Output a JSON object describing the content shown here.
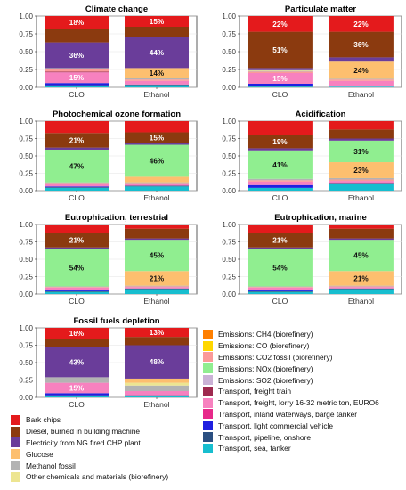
{
  "colors": {
    "bark_chips": "#e41a1c",
    "diesel": "#8b3a0f",
    "electricity": "#6a3d9a",
    "glucose": "#fdbf6f",
    "methanol_fossil": "#b3b3b3",
    "other_chemicals": "#ede591",
    "ch4": "#ff7f00",
    "co": "#ffd700",
    "co2_fossil": "#fb9a99",
    "nox": "#90ee90",
    "so2": "#cab2d6",
    "freight_train": "#9e2a4f",
    "lorry": "#f781bf",
    "barge": "#e7298a",
    "lcv": "#1f1fe0",
    "pipeline": "#2b4f81",
    "sea_tanker": "#17becf"
  },
  "legend": {
    "left": [
      {
        "key": "bark_chips",
        "label": "Bark chips"
      },
      {
        "key": "diesel",
        "label": "Diesel, burned in building machine"
      },
      {
        "key": "electricity",
        "label": "Electricity from NG fired CHP plant"
      },
      {
        "key": "glucose",
        "label": "Glucose"
      },
      {
        "key": "methanol_fossil",
        "label": "Methanol fossil"
      },
      {
        "key": "other_chemicals",
        "label": "Other chemicals and materials (biorefinery)"
      }
    ],
    "right": [
      {
        "key": "ch4",
        "label": "Emissions: CH4 (biorefinery)"
      },
      {
        "key": "co",
        "label": "Emissions: CO (biorefinery)"
      },
      {
        "key": "co2_fossil",
        "label": "Emissions: CO2 fossil (biorefinery)"
      },
      {
        "key": "nox",
        "label": "Emissions: NOx (biorefinery)"
      },
      {
        "key": "so2",
        "label": "Emissions: SO2 (biorefinery)"
      },
      {
        "key": "freight_train",
        "label": "Transport, freight train"
      },
      {
        "key": "lorry",
        "label": "Transport, freight, lorry 16-32 metric ton, EURO6"
      },
      {
        "key": "barge",
        "label": "Transport, inland waterways, barge tanker"
      },
      {
        "key": "lcv",
        "label": "Transport, light commercial vehicle"
      },
      {
        "key": "pipeline",
        "label": "Transport, pipeline, onshore"
      },
      {
        "key": "sea_tanker",
        "label": "Transport, sea, tanker"
      }
    ]
  },
  "chart_data": [
    {
      "type": "bar",
      "stacked": true,
      "title": "Climate change",
      "categories": [
        "CLO",
        "Ethanol"
      ],
      "yticks": [
        "0.00",
        "0.25",
        "0.50",
        "0.75",
        "1.00"
      ],
      "ylim": [
        0,
        1
      ],
      "series": [
        {
          "key": "sea_tanker",
          "values": [
            0.02,
            0.03
          ]
        },
        {
          "key": "pipeline",
          "values": [
            0.01,
            0.01
          ]
        },
        {
          "key": "lcv",
          "values": [
            0.03,
            0.0
          ]
        },
        {
          "key": "barge",
          "values": [
            0.0,
            0.0
          ]
        },
        {
          "key": "lorry",
          "values": [
            0.15,
            0.05
          ]
        },
        {
          "key": "freight_train",
          "values": [
            0.01,
            0.0
          ]
        },
        {
          "key": "co2_fossil",
          "values": [
            0.03,
            0.02
          ]
        },
        {
          "key": "methanol_fossil",
          "values": [
            0.02,
            0.02
          ]
        },
        {
          "key": "glucose",
          "values": [
            0.0,
            0.14
          ]
        },
        {
          "key": "electricity",
          "values": [
            0.36,
            0.44
          ]
        },
        {
          "key": "diesel",
          "values": [
            0.19,
            0.14
          ]
        },
        {
          "key": "bark_chips",
          "values": [
            0.18,
            0.15
          ]
        }
      ],
      "labels": [
        [
          "15%",
          "36%",
          "18%"
        ],
        [
          "14%",
          "44%",
          "15%"
        ]
      ],
      "label_keys": [
        [
          "lorry",
          "electricity",
          "bark_chips"
        ],
        [
          "glucose",
          "electricity",
          "bark_chips"
        ]
      ]
    },
    {
      "type": "bar",
      "stacked": true,
      "title": "Particulate matter",
      "categories": [
        "CLO",
        "Ethanol"
      ],
      "yticks": [
        "0.00",
        "0.25",
        "0.50",
        "0.75",
        "1.00"
      ],
      "ylim": [
        0,
        1
      ],
      "series": [
        {
          "key": "sea_tanker",
          "values": [
            0.01,
            0.01
          ]
        },
        {
          "key": "pipeline",
          "values": [
            0.01,
            0.0
          ]
        },
        {
          "key": "lcv",
          "values": [
            0.03,
            0.0
          ]
        },
        {
          "key": "lorry",
          "values": [
            0.15,
            0.08
          ]
        },
        {
          "key": "co2_fossil",
          "values": [
            0.02,
            0.02
          ]
        },
        {
          "key": "methanol_fossil",
          "values": [
            0.01,
            0.01
          ]
        },
        {
          "key": "other_chemicals",
          "values": [
            0.01,
            0.0
          ]
        },
        {
          "key": "glucose",
          "values": [
            0.0,
            0.24
          ]
        },
        {
          "key": "electricity",
          "values": [
            0.03,
            0.06
          ]
        },
        {
          "key": "diesel",
          "values": [
            0.51,
            0.36
          ]
        },
        {
          "key": "bark_chips",
          "values": [
            0.22,
            0.22
          ]
        }
      ],
      "labels": [
        [
          "15%",
          "51%",
          "22%"
        ],
        [
          "24%",
          "36%",
          "22%"
        ]
      ],
      "label_keys": [
        [
          "lorry",
          "diesel",
          "bark_chips"
        ],
        [
          "glucose",
          "diesel",
          "bark_chips"
        ]
      ]
    },
    {
      "type": "bar",
      "stacked": true,
      "title": "Photochemical ozone formation",
      "categories": [
        "CLO",
        "Ethanol"
      ],
      "yticks": [
        "0.00",
        "0.25",
        "0.50",
        "0.75",
        "1.00"
      ],
      "ylim": [
        0,
        1
      ],
      "series": [
        {
          "key": "sea_tanker",
          "values": [
            0.04,
            0.06
          ]
        },
        {
          "key": "pipeline",
          "values": [
            0.01,
            0.01
          ]
        },
        {
          "key": "lcv",
          "values": [
            0.01,
            0.0
          ]
        },
        {
          "key": "lorry",
          "values": [
            0.03,
            0.02
          ]
        },
        {
          "key": "co2_fossil",
          "values": [
            0.02,
            0.02
          ]
        },
        {
          "key": "methanol_fossil",
          "values": [
            0.01,
            0.01
          ]
        },
        {
          "key": "glucose",
          "values": [
            0.0,
            0.08
          ]
        },
        {
          "key": "nox",
          "values": [
            0.47,
            0.46
          ]
        },
        {
          "key": "electricity",
          "values": [
            0.03,
            0.03
          ]
        },
        {
          "key": "diesel",
          "values": [
            0.21,
            0.15
          ]
        },
        {
          "key": "bark_chips",
          "values": [
            0.17,
            0.16
          ]
        }
      ],
      "labels": [
        [
          "47%",
          "21%"
        ],
        [
          "46%",
          "15%"
        ]
      ],
      "label_keys": [
        [
          "nox",
          "diesel"
        ],
        [
          "nox",
          "diesel"
        ]
      ]
    },
    {
      "type": "bar",
      "stacked": true,
      "title": "Acidification",
      "categories": [
        "CLO",
        "Ethanol"
      ],
      "yticks": [
        "0.00",
        "0.25",
        "0.50",
        "0.75",
        "1.00"
      ],
      "ylim": [
        0,
        1
      ],
      "series": [
        {
          "key": "sea_tanker",
          "values": [
            0.04,
            0.1
          ]
        },
        {
          "key": "pipeline",
          "values": [
            0.0,
            0.01
          ]
        },
        {
          "key": "lcv",
          "values": [
            0.04,
            0.0
          ]
        },
        {
          "key": "lorry",
          "values": [
            0.05,
            0.03
          ]
        },
        {
          "key": "co2_fossil",
          "values": [
            0.02,
            0.02
          ]
        },
        {
          "key": "methanol_fossil",
          "values": [
            0.02,
            0.02
          ]
        },
        {
          "key": "glucose",
          "values": [
            0.0,
            0.23
          ]
        },
        {
          "key": "nox",
          "values": [
            0.41,
            0.31
          ]
        },
        {
          "key": "electricity",
          "values": [
            0.03,
            0.03
          ]
        },
        {
          "key": "diesel",
          "values": [
            0.19,
            0.13
          ]
        },
        {
          "key": "bark_chips",
          "values": [
            0.2,
            0.12
          ]
        }
      ],
      "labels": [
        [
          "41%",
          "19%"
        ],
        [
          "23%",
          "31%"
        ]
      ],
      "label_keys": [
        [
          "nox",
          "diesel"
        ],
        [
          "glucose",
          "nox"
        ]
      ]
    },
    {
      "type": "bar",
      "stacked": true,
      "title": "Eutrophication, terrestrial",
      "categories": [
        "CLO",
        "Ethanol"
      ],
      "yticks": [
        "0.00",
        "0.25",
        "0.50",
        "0.75",
        "1.00"
      ],
      "ylim": [
        0,
        1
      ],
      "series": [
        {
          "key": "sea_tanker",
          "values": [
            0.03,
            0.07
          ]
        },
        {
          "key": "pipeline",
          "values": [
            0.01,
            0.01
          ]
        },
        {
          "key": "lcv",
          "values": [
            0.02,
            0.0
          ]
        },
        {
          "key": "lorry",
          "values": [
            0.03,
            0.02
          ]
        },
        {
          "key": "co2_fossil",
          "values": [
            0.01,
            0.01
          ]
        },
        {
          "key": "methanol_fossil",
          "values": [
            0.01,
            0.01
          ]
        },
        {
          "key": "glucose",
          "values": [
            0.0,
            0.21
          ]
        },
        {
          "key": "nox",
          "values": [
            0.54,
            0.45
          ]
        },
        {
          "key": "electricity",
          "values": [
            0.02,
            0.02
          ]
        },
        {
          "key": "diesel",
          "values": [
            0.21,
            0.14
          ]
        },
        {
          "key": "bark_chips",
          "values": [
            0.12,
            0.06
          ]
        }
      ],
      "labels": [
        [
          "54%",
          "21%"
        ],
        [
          "21%",
          "45%"
        ]
      ],
      "label_keys": [
        [
          "nox",
          "diesel"
        ],
        [
          "glucose",
          "nox"
        ]
      ]
    },
    {
      "type": "bar",
      "stacked": true,
      "title": "Eutrophication, marine",
      "categories": [
        "CLO",
        "Ethanol"
      ],
      "yticks": [
        "0.00",
        "0.25",
        "0.50",
        "0.75",
        "1.00"
      ],
      "ylim": [
        0,
        1
      ],
      "series": [
        {
          "key": "sea_tanker",
          "values": [
            0.03,
            0.07
          ]
        },
        {
          "key": "pipeline",
          "values": [
            0.01,
            0.01
          ]
        },
        {
          "key": "lcv",
          "values": [
            0.02,
            0.0
          ]
        },
        {
          "key": "lorry",
          "values": [
            0.03,
            0.02
          ]
        },
        {
          "key": "co2_fossil",
          "values": [
            0.01,
            0.01
          ]
        },
        {
          "key": "methanol_fossil",
          "values": [
            0.01,
            0.01
          ]
        },
        {
          "key": "glucose",
          "values": [
            0.0,
            0.21
          ]
        },
        {
          "key": "nox",
          "values": [
            0.54,
            0.45
          ]
        },
        {
          "key": "electricity",
          "values": [
            0.02,
            0.02
          ]
        },
        {
          "key": "diesel",
          "values": [
            0.21,
            0.14
          ]
        },
        {
          "key": "bark_chips",
          "values": [
            0.12,
            0.06
          ]
        }
      ],
      "labels": [
        [
          "54%",
          "21%"
        ],
        [
          "21%",
          "45%"
        ]
      ],
      "label_keys": [
        [
          "nox",
          "diesel"
        ],
        [
          "glucose",
          "nox"
        ]
      ]
    },
    {
      "type": "bar",
      "stacked": true,
      "title": "Fossil fuels depletion",
      "categories": [
        "CLO",
        "Ethanol"
      ],
      "yticks": [
        "0.00",
        "0.25",
        "0.50",
        "0.75",
        "1.00"
      ],
      "ylim": [
        0,
        1
      ],
      "series": [
        {
          "key": "sea_tanker",
          "values": [
            0.02,
            0.02
          ]
        },
        {
          "key": "pipeline",
          "values": [
            0.01,
            0.01
          ]
        },
        {
          "key": "lcv",
          "values": [
            0.03,
            0.0
          ]
        },
        {
          "key": "lorry",
          "values": [
            0.15,
            0.06
          ]
        },
        {
          "key": "co2_fossil",
          "values": [
            0.0,
            0.0
          ]
        },
        {
          "key": "methanol_fossil",
          "values": [
            0.08,
            0.08
          ]
        },
        {
          "key": "other_chemicals",
          "values": [
            0.0,
            0.04
          ]
        },
        {
          "key": "glucose",
          "values": [
            0.0,
            0.06
          ]
        },
        {
          "key": "electricity",
          "values": [
            0.43,
            0.48
          ]
        },
        {
          "key": "diesel",
          "values": [
            0.12,
            0.12
          ]
        },
        {
          "key": "bark_chips",
          "values": [
            0.16,
            0.13
          ]
        }
      ],
      "labels": [
        [
          "15%",
          "43%",
          "16%"
        ],
        [
          "48%",
          "13%"
        ]
      ],
      "label_keys": [
        [
          "lorry",
          "electricity",
          "bark_chips"
        ],
        [
          "electricity",
          "bark_chips"
        ]
      ]
    }
  ]
}
